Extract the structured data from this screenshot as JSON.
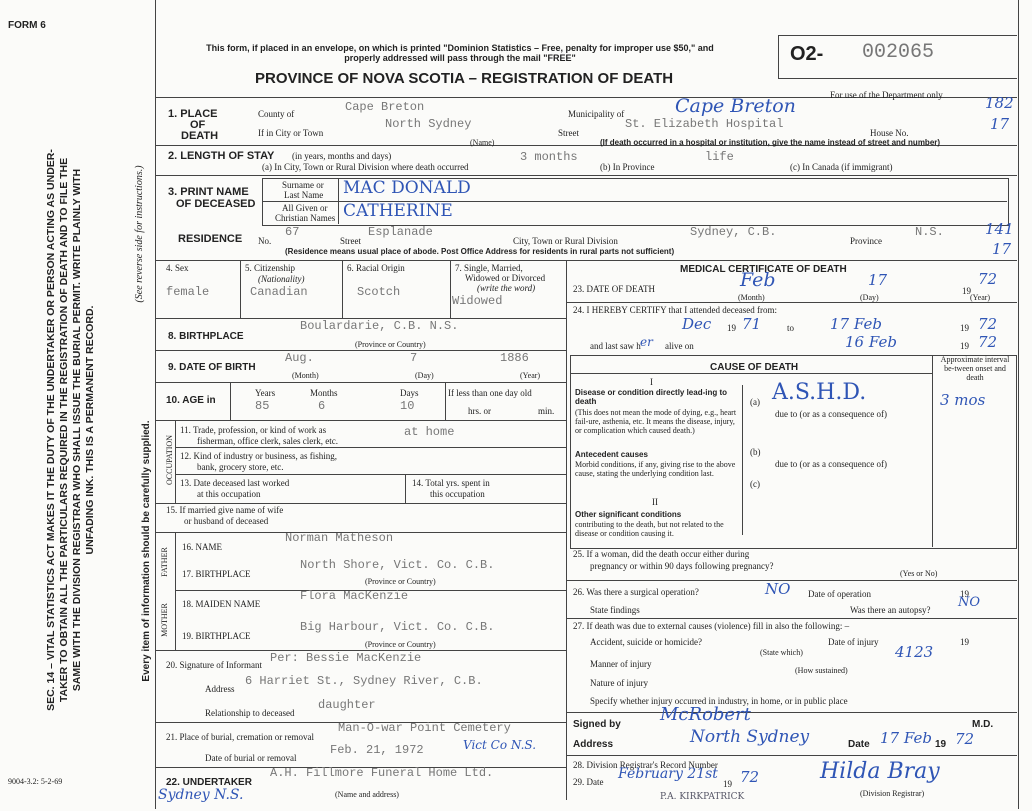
{
  "form_id": "FORM 6",
  "header": {
    "notice": "This form, if placed in an envelope, on which is printed \"Dominion Statistics – Free, penalty for improper use $50,\" and properly addressed will pass through the mail \"FREE\"",
    "title": "PROVINCE OF NOVA SCOTIA – REGISTRATION OF DEATH",
    "reg_prefix": "O2-",
    "reg_number": "002065",
    "dept_note": "For use of the Department only",
    "dept_codes": [
      "182",
      "17",
      "141",
      "17"
    ]
  },
  "margin": {
    "statute": "SEC. 14 – VITAL STATISTICS ACT MAKES IT THE DUTY OF THE UNDERTAKER OR PERSON ACTING AS UNDER-TAKER TO OBTAIN ALL THE PARTICULARS REQUIRED IN THE REGISTRATION OF DEATH AND TO FILE THE SAME WITH THE DIVISION REGISTRAR WHO SHALL ISSUE THE BURIAL PERMIT. WRITE PLAINLY WITH UNFADING INK. THIS IS A PERMANENT RECORD.",
    "instructions": "(See reverse side for instructions.)",
    "care": "Every item of information should be carefully supplied.",
    "form_code": "9004-3.2: 5-2-69"
  },
  "place_of_death": {
    "label": [
      "1. PLACE",
      "OF",
      "DEATH"
    ],
    "county_label": "County of",
    "county": "Cape Breton",
    "municipality_label": "Municipality of",
    "municipality": "Cape Breton",
    "city_label": "If in City or Town",
    "city": "North Sydney",
    "city_hint": "(Name)",
    "street_label": "Street",
    "street": "St. Elizabeth Hospital",
    "house_label": "House No.",
    "note": "(If death occurred in a hospital or institution, give the name instead of street and number)"
  },
  "length_of_stay": {
    "label": "2. LENGTH OF STAY",
    "hint": "(in years, months and days)",
    "city_label": "(a) In City, Town or Rural Division where death occurred",
    "city": "3 months",
    "province_label": "(b) In Province",
    "province": "life",
    "canada_label": "(c) In Canada (if immigrant)"
  },
  "deceased": {
    "label": [
      "3. PRINT NAME",
      "OF DECEASED"
    ],
    "surname_label": [
      "Surname or",
      "Last Name"
    ],
    "surname": "MAC DONALD",
    "given_label": [
      "All Given or",
      "Christian Names"
    ],
    "given": "CATHERINE"
  },
  "residence": {
    "label": "RESIDENCE",
    "no_label": "No.",
    "no": "67",
    "street_label": "Street",
    "street": "Esplanade",
    "city_label": "City, Town or Rural Division",
    "city": "Sydney, C.B.",
    "province_label": "Province",
    "province": "N.S.",
    "note": "(Residence means usual place of abode. Post Office Address for residents in rural parts not sufficient)"
  },
  "personal": {
    "sex_label": "4. Sex",
    "sex": "female",
    "citizenship_label": "5. Citizenship",
    "citizenship_hint": "(Nationality)",
    "citizenship": "Canadian",
    "racial_label": "6. Racial Origin",
    "racial": "Scotch",
    "marital_label": [
      "7. Single, Married,",
      "Widowed or Divorced"
    ],
    "marital_hint": "(write the word)",
    "marital": "Widowed"
  },
  "birth": {
    "place_label": "8. BIRTHPLACE",
    "place": "Boulardarie, C.B. N.S.",
    "place_hint": "(Province or Country)",
    "date_label": "9. DATE OF BIRTH",
    "month": "Aug.",
    "day": "7",
    "year": "1886",
    "month_hint": "(Month)",
    "day_hint": "(Day)",
    "year_hint": "(Year)"
  },
  "age": {
    "label": "10. AGE in",
    "years_label": "Years",
    "years": "85",
    "months_label": "Months",
    "months": "6",
    "days_label": "Days",
    "days": "10",
    "infant_label": "If less than one day old",
    "hrs_label": "hrs. or",
    "min_label": "min."
  },
  "occupation": {
    "label": "OCCUPATION",
    "trade_label": [
      "11. Trade, profession, or kind of work as",
      "fisherman, office clerk, sales clerk, etc."
    ],
    "trade": "at home",
    "industry_label": [
      "12. Kind of industry or business, as fishing,",
      "bank, grocery store, etc."
    ],
    "last_worked_label": [
      "13. Date deceased last worked",
      "at this occupation"
    ],
    "total_years_label": [
      "14. Total yrs. spent in",
      "this occupation"
    ]
  },
  "spouse": {
    "label": [
      "15. If married give name of wife",
      "or husband of deceased"
    ]
  },
  "father": {
    "label": "FATHER",
    "name_label": "16. NAME",
    "name": "Norman Matheson",
    "birthplace_label": "17. BIRTHPLACE",
    "birthplace": "North Shore, Vict. Co. C.B.",
    "birthplace_hint": "(Province or Country)"
  },
  "mother": {
    "label": "MOTHER",
    "name_label": "18. MAIDEN NAME",
    "name": "Flora MacKenzie",
    "birthplace_label": "19. BIRTHPLACE",
    "birthplace": "Big Harbour, Vict. Co. C.B.",
    "birthplace_hint": "(Province or Country)"
  },
  "informant": {
    "label": "20. Signature of Informant",
    "signature": "Per: Bessie MacKenzie",
    "address_label": "Address",
    "address": "6 Harriet St., Sydney River, C.B.",
    "relationship_label": "Relationship to deceased",
    "relationship": "daughter"
  },
  "burial": {
    "place_label": "21. Place of burial, cremation or removal",
    "place": "Man-O-war Point Cemetery",
    "date_label": "Date of burial or removal",
    "date": "Feb. 21, 1972",
    "county": "Vict Co N.S."
  },
  "undertaker": {
    "label": "22. UNDERTAKER",
    "name": "A.H. Fillmore Funeral Home Ltd.",
    "hint": "(Name and address)",
    "address": "Sydney N.S."
  },
  "medical": {
    "title": "MEDICAL CERTIFICATE OF DEATH",
    "death_date_label": "23. DATE OF DEATH",
    "death_month": "Feb",
    "death_day": "17",
    "death_year": "72",
    "century": [
      "19",
      "19",
      "19",
      "19",
      "19",
      "19",
      "19",
      "19"
    ],
    "month_hint": "(Month)",
    "day_hint": "(Day)",
    "year_hint": "(Year)",
    "attended_label": "24. I HEREBY CERTIFY that I attended deceased from:",
    "attended_from": "Dec",
    "attended_from_year": "71",
    "to_label": "to",
    "attended_to": "17 Feb",
    "attended_to_year": "72",
    "last_saw_label": "and last saw h",
    "last_saw_pronoun": "er",
    "alive_label": "alive on",
    "last_saw": "16 Feb",
    "last_saw_year": "72"
  },
  "cause": {
    "title": "CAUSE OF DEATH",
    "interval_header": "Approximate interval be-tween onset and death",
    "part_1": "I",
    "direct_label": "Disease or condition directly lead-ing to death",
    "direct_hint": "(This does not mean the mode of dying, e.g., heart fail-ure, asthenia, etc. It means the disease, injury, or complication which caused death.)",
    "a_label": "(a)",
    "a": "A.S.H.D.",
    "a_interval": "3 mos",
    "due_to": [
      "due to (or as a consequence of)",
      "due to (or as a consequence of)"
    ],
    "antecedent_label": "Antecedent causes",
    "antecedent_hint": "Morbid conditions, if any, giving rise to the above cause, stating the underlying condition last.",
    "b_label": "(b)",
    "c_label": "(c)",
    "part_2": "II",
    "other_label": "Other significant conditions",
    "other_hint": "contributing to the death, but not related to the disease or condition causing it."
  },
  "pregnancy": {
    "label": [
      "25. If a woman, did the death occur either during",
      "pregnancy or within 90 days following pregnancy?"
    ],
    "hint": "(Yes or No)"
  },
  "operation": {
    "label": "26. Was there a surgical operation?",
    "value": "NO",
    "date_label": "Date of operation",
    "findings_label": "State findings",
    "autopsy_label": "Was there an autopsy?",
    "autopsy": "NO"
  },
  "external": {
    "label": "27. If death was due to external causes (violence) fill in also the following: –",
    "kind_label": "Accident, suicide or homicide?",
    "kind_hint": "(State which)",
    "date_label": "Date of injury",
    "manner_label": "Manner of injury",
    "manner_hint": "(How sustained)",
    "code": "4123",
    "nature_label": "Nature of injury",
    "place_label": "Specify whether injury occurred in industry, in home, or in public place"
  },
  "signature": {
    "signed_label": "Signed by",
    "signed": "McRobert",
    "md": "M.D.",
    "address_label": "Address",
    "address": "North Sydney",
    "date_label": "Date",
    "date": "17 Feb",
    "year": "72"
  },
  "registrar": {
    "record_label": "28. Division Registrar's Record Number",
    "date_label": "29. Date",
    "date": "February 21st",
    "year": "72",
    "name": "Hilda Bray",
    "hint": "(Division Registrar)",
    "deputy": "P.A. KIRKPATRICK"
  }
}
